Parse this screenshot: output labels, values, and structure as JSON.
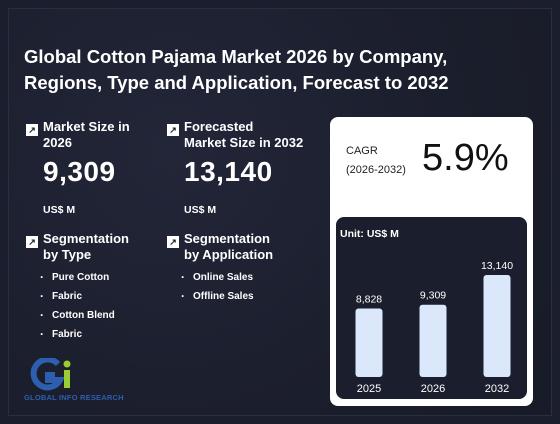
{
  "title_line1": "Global Cotton Pajama Market 2026 by Company,",
  "title_line2": "Regions, Type and Application, Forecast to 2032",
  "market_size": {
    "label_line1": "Market Size in",
    "label_line2": "2026",
    "value": "9,309",
    "unit": "US$ M"
  },
  "forecast": {
    "label_line1": "Forecasted",
    "label_line2": "Market Size in 2032",
    "value": "13,140",
    "unit": "US$ M"
  },
  "seg_type": {
    "label_line1": "Segmentation",
    "label_line2": "by Type",
    "items": [
      "Pure Cotton",
      "Fabric",
      "Cotton Blend",
      "Fabric"
    ]
  },
  "seg_app": {
    "label_line1": "Segmentation",
    "label_line2": "by Application",
    "items": [
      "Online Sales",
      "Offline Sales"
    ]
  },
  "cagr": {
    "label_line1": "CAGR",
    "label_line2": "(2026-2032)",
    "value": "5.9%"
  },
  "logo_text": "GLOBAL INFO RESEARCH",
  "icons": {
    "arrow": "arrow-up-right-icon"
  },
  "colors": {
    "background": "#1b1e2c",
    "bar": "#dbe8fb",
    "logo_blue": "#2d5fb0",
    "logo_green": "#9acd32"
  },
  "chart_data": {
    "type": "bar",
    "unit_label": "Unit: US$ M",
    "categories": [
      "2025",
      "2026",
      "2032"
    ],
    "values": [
      8828,
      9309,
      13140
    ],
    "value_labels": [
      "8,828",
      "9,309",
      "13,140"
    ]
  }
}
